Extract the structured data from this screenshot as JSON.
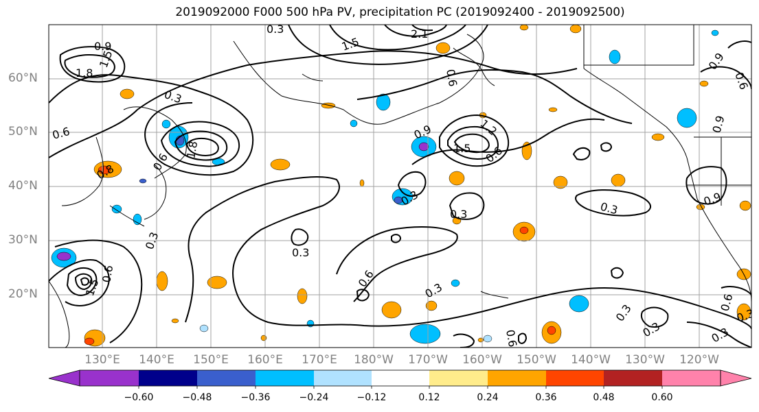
{
  "title": "2019092000 F000 500 hPa PV, precipitation PC (2019092400 - 2019092500)",
  "lat_labels": [
    "60°N",
    "50°N",
    "40°N",
    "30°N",
    "20°N"
  ],
  "lon_labels": [
    "130°E",
    "140°E",
    "150°E",
    "160°E",
    "170°E",
    "180°W",
    "170°W",
    "160°W",
    "150°W",
    "140°W",
    "130°W",
    "120°W"
  ],
  "colorbar": {
    "tick_labels": [
      "−0.60",
      "−0.48",
      "−0.36",
      "−0.24",
      "−0.12",
      "0.12",
      "0.24",
      "0.36",
      "0.48",
      "0.60"
    ],
    "colors": [
      "#9932cc",
      "#00008b",
      "#3a5fcd",
      "#00bfff",
      "#b0e2ff",
      "#ffffff",
      "#ffec8b",
      "#ffa500",
      "#ff4500",
      "#b22222",
      "#ff82ab"
    ]
  },
  "contour_labels": [
    "0.9",
    "1.8",
    "1.5",
    "0.3",
    "0.6",
    "0.6",
    "1.8",
    "0.3",
    "2.1",
    "1.5",
    "0.6",
    "0.9",
    "1.2",
    "1.5",
    "0.6",
    "0.3",
    "0.3",
    "0.3",
    "0.6",
    "0.3",
    "0.3",
    "1.5",
    "0.6",
    "0.6",
    "0.3",
    "0.3",
    "0.3",
    "0.9",
    "0.9",
    "0.6",
    "0.9",
    "0.3",
    "0.6",
    "0.3",
    "0.8"
  ]
}
